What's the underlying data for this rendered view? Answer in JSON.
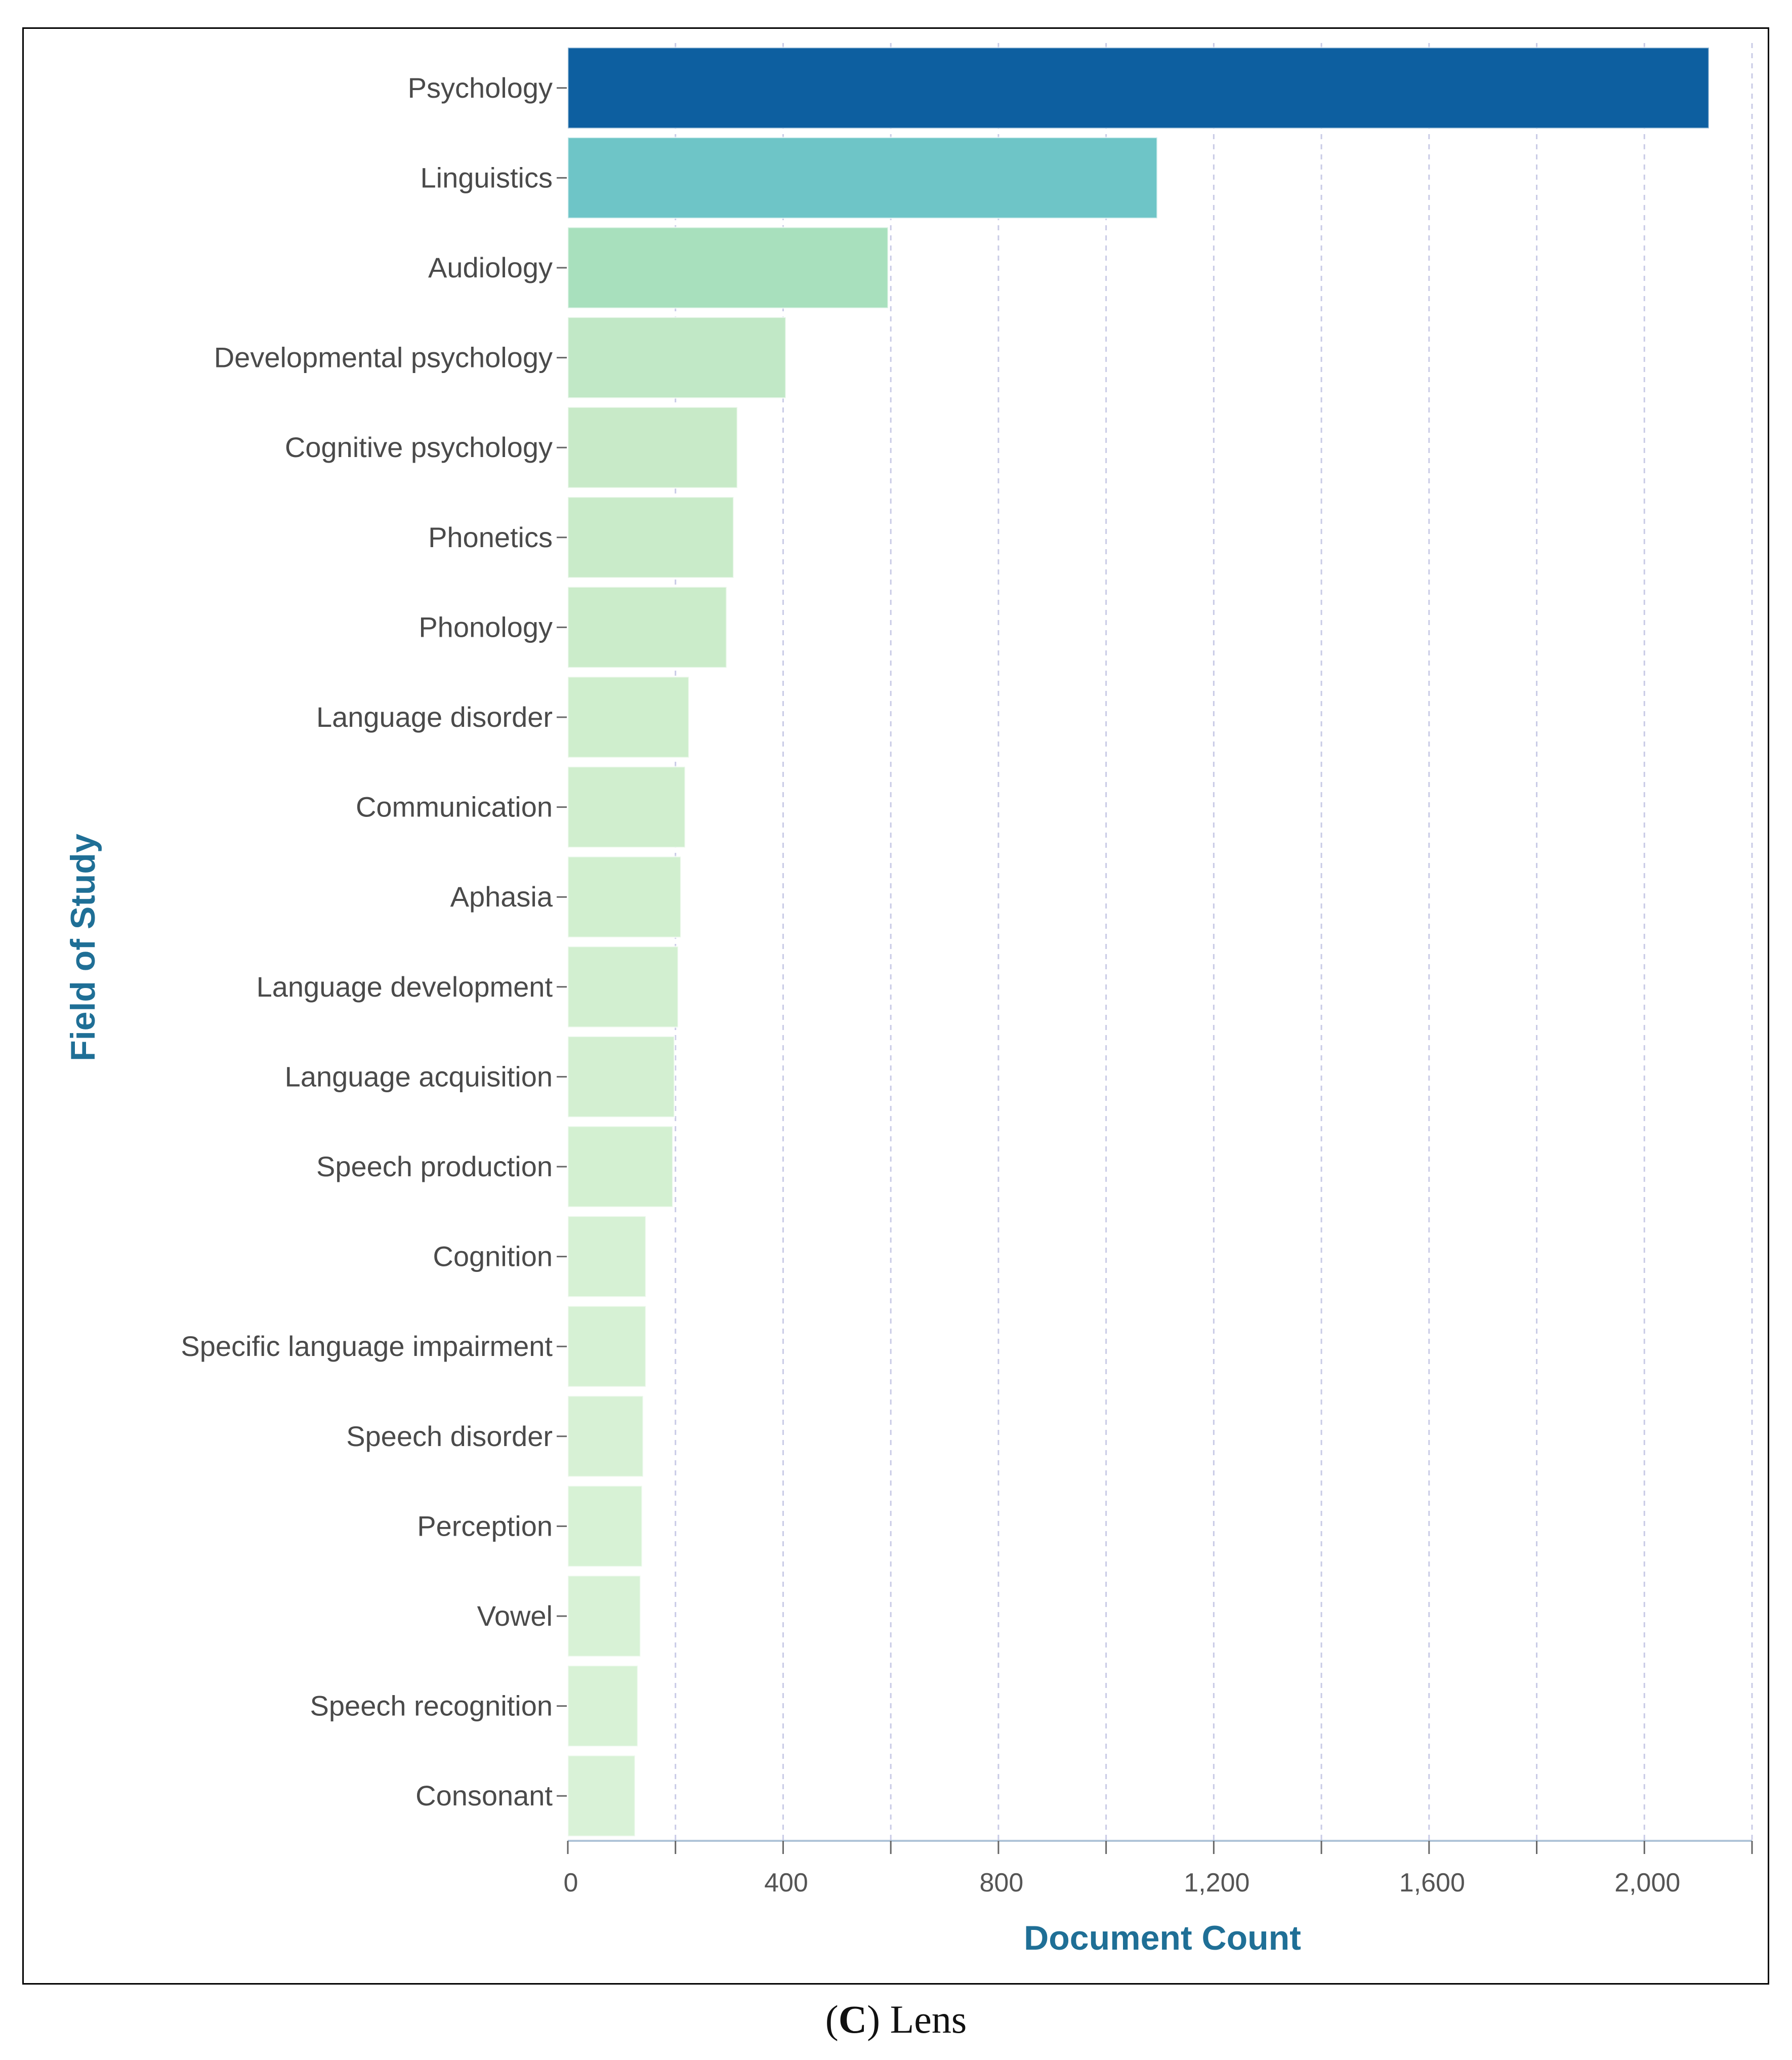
{
  "chart_data": {
    "type": "bar",
    "orientation": "horizontal",
    "xlabel": "Document Count",
    "ylabel": "Field of Study",
    "xlim": [
      0,
      2200
    ],
    "xticks": [
      0,
      400,
      800,
      1200,
      1600,
      2000
    ],
    "xtick_labels": [
      "0",
      "400",
      "800",
      "1,200",
      "1,600",
      "2,000"
    ],
    "grid": "vertical dashed every 200",
    "categories": [
      "Psychology",
      "Linguistics",
      "Audiology",
      "Developmental psychology",
      "Cognitive psychology",
      "Phonetics",
      "Phonology",
      "Language disorder",
      "Communication",
      "Aphasia",
      "Language development",
      "Language acquisition",
      "Speech production",
      "Cognition",
      "Specific language impairment",
      "Speech disorder",
      "Perception",
      "Vowel",
      "Speech recognition",
      "Consonant"
    ],
    "values": [
      2120,
      1095,
      595,
      405,
      315,
      308,
      295,
      225,
      218,
      210,
      205,
      198,
      195,
      145,
      145,
      140,
      138,
      135,
      130,
      125
    ],
    "colors": [
      "#0d5fa0",
      "#6ec5c7",
      "#a8e0bd",
      "#c1e8c6",
      "#c8eac8",
      "#c9ebc9",
      "#cbecca",
      "#cfeecd",
      "#d0eece",
      "#d1efcf",
      "#d2efd0",
      "#d3efd1",
      "#d3f0d1",
      "#d6f1d4",
      "#d6f1d4",
      "#d7f1d5",
      "#d7f2d5",
      "#d8f2d6",
      "#d8f2d6",
      "#d9f2d7"
    ]
  },
  "caption": {
    "letter": "C",
    "text": "Lens"
  }
}
